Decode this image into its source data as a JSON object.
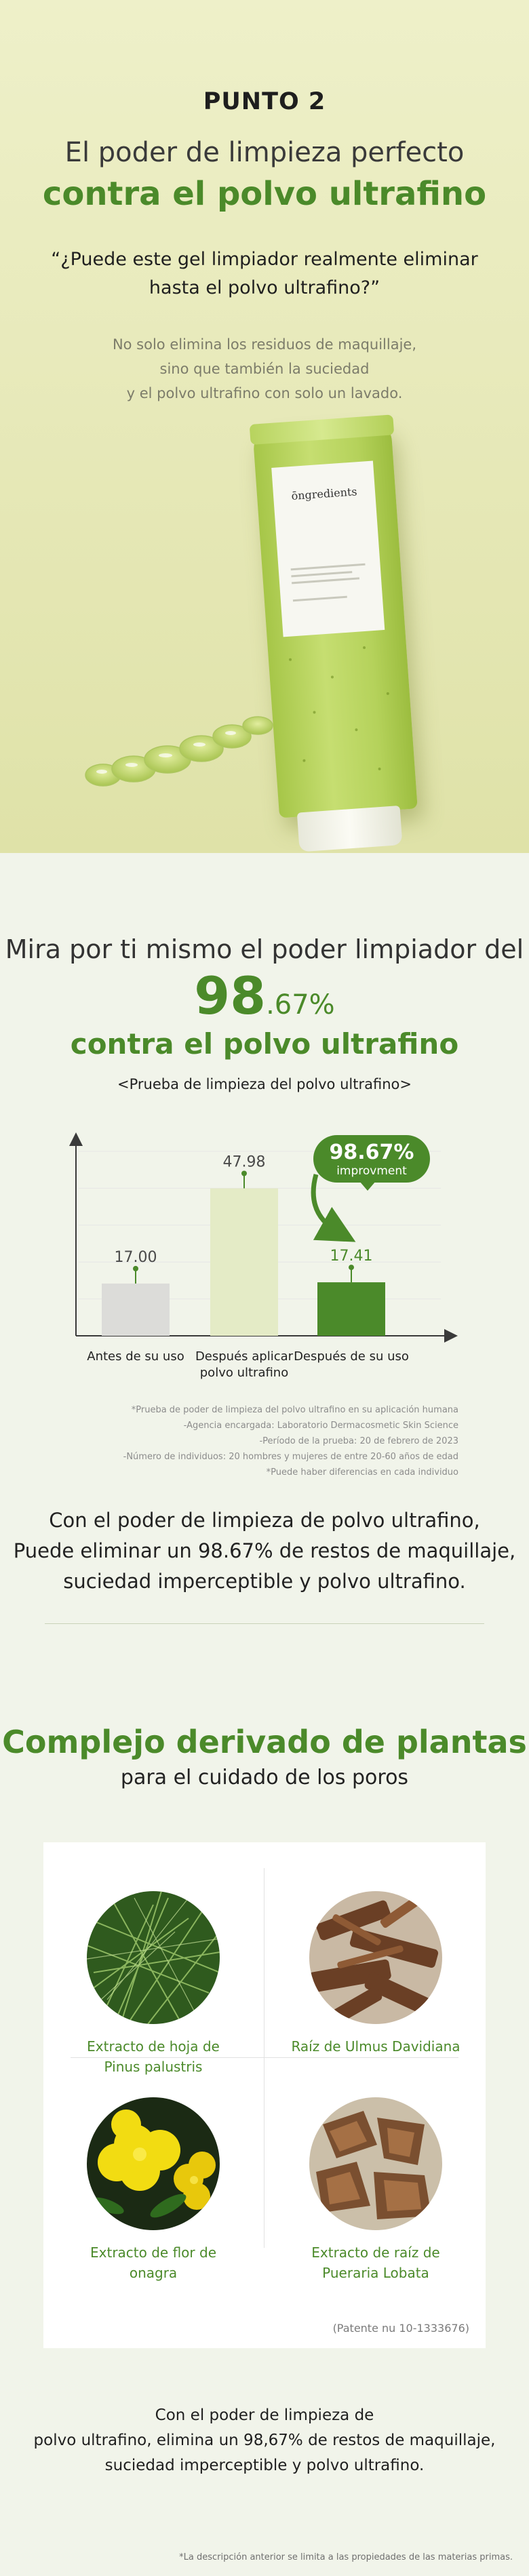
{
  "hero": {
    "point_label": "PUNTO 2",
    "title_line1": "El poder de limpieza perfecto",
    "title_line2": "contra el polvo ultrafino",
    "quote_lines": [
      "“¿Puede este gel limpiador realmente eliminar",
      "hasta el polvo ultrafino?”"
    ],
    "description_lines": [
      "No solo elimina los residuos de maquillaje,",
      "sino que también la suciedad",
      "y el polvo ultrafino con solo un lavado."
    ],
    "product_brand": "ōngredients"
  },
  "results": {
    "heading_line1": "Mira por ti mismo el poder limpiador del",
    "value_int": "98",
    "value_dec": ".67%",
    "heading_line2": "contra el polvo ultrafino",
    "test_label": "<Prueba de limpieza del polvo ultrafino>"
  },
  "chart_data": {
    "type": "bar",
    "categories": [
      "Antes de su uso",
      "Después aplicar\npolvo ultrafino",
      "Después de su uso"
    ],
    "values": [
      17.0,
      47.98,
      17.41
    ],
    "value_labels": [
      "17.00",
      "47.98",
      "17.41"
    ],
    "ylim": [
      0,
      60
    ],
    "grid": true,
    "bar_colors": [
      "#dcdcd9",
      "#e4ebc6",
      "#4b8a2a"
    ],
    "annotation": {
      "value": "98.67%",
      "text": "improvment",
      "color": "#4b8a2a"
    }
  },
  "footnotes": [
    "*Prueba de poder de limpieza del polvo ultrafino en su aplicación humana",
    "-Agencia encargada: Laboratorio Dermacosmetic Skin Science",
    "-Período de la prueba:  20 de febrero de 2023",
    "-Número de individuos: 20 hombres y mujeres de entre 20-60 años de edad",
    "*Puede haber diferencias en cada individuo"
  ],
  "results_summary_lines": [
    "Con el poder de limpieza de polvo ultrafino,",
    "Puede eliminar un 98.67% de restos de maquillaje,",
    "suciedad imperceptible y polvo ultrafino."
  ],
  "plants": {
    "title_line1": "Complejo derivado de plantas",
    "title_line2": "para el cuidado de los poros",
    "ingredients": [
      {
        "name_lines": [
          "Extracto de hoja de",
          "Pinus palustris"
        ],
        "icon": "pine-needles-icon"
      },
      {
        "name_lines": [
          "Raíz de Ulmus Davidiana"
        ],
        "icon": "elm-root-icon"
      },
      {
        "name_lines": [
          "Extracto de flor de",
          "onagra"
        ],
        "icon": "evening-primrose-icon"
      },
      {
        "name_lines": [
          "Extracto de raíz de",
          "Pueraria Lobata"
        ],
        "icon": "pueraria-root-icon"
      }
    ],
    "patent": "(Patente nu 10-1333676)",
    "summary_lines": [
      "Con el poder de limpieza de",
      "polvo ultrafino, elimina un 98,67% de restos de maquillaje,",
      "suciedad imperceptible y polvo ultrafino."
    ],
    "disclaimer": "*La descripción anterior se limita a las propiedades de las materias primas."
  },
  "colors": {
    "accent": "#4b8a2a",
    "hero_bg": "#e6e8b7",
    "page_bg": "#f1f4ea"
  }
}
